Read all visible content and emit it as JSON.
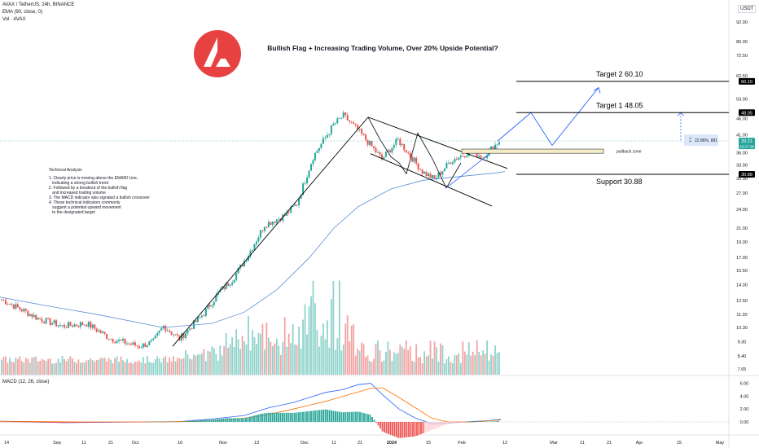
{
  "header": {
    "symbol_line": "AVAX / TetherUS, 24h, BINANCE",
    "ema_label": "EMA (90, close, 0)",
    "vol_label": "Vol · AVAX",
    "macd_label": "MACD (12, 26, close)",
    "currency": "USDT"
  },
  "colors": {
    "bull": "#26a69a",
    "bear": "#ef5350",
    "bull_vol": "#8fd3cb",
    "bear_vol": "#f4a3a1",
    "ema": "#5b8ed6",
    "macd_line": "#2962ff",
    "signal_line": "#ff6d00",
    "logo": "#e84142",
    "projection": "#2962ff"
  },
  "chart_data": {
    "type": "candlestick",
    "title": "Bullish Flag + Increasing Trading Volume, Over 20% Upside Potential?",
    "y_scale": "log",
    "y_ticks": [
      "92.00",
      "80.00",
      "72.50",
      "62.50",
      "53.00",
      "46.00",
      "41.00",
      "36.00",
      "33.00",
      "30.00",
      "27.00",
      "24.00",
      "21.00",
      "19.00",
      "17.00",
      "15.50",
      "14.00",
      "12.50",
      "11.30",
      "10.30",
      "9.30",
      "8.40",
      "7.65"
    ],
    "x_ticks": [
      "14",
      "Sep",
      "11",
      "21",
      "Oct",
      "16",
      "Nov",
      "13",
      "Dec",
      "11",
      "21",
      "2024",
      "15",
      "Feb",
      "12",
      "Mar",
      "11",
      "21",
      "Apr",
      "15",
      "May"
    ],
    "price_tags": [
      {
        "label": "60.10",
        "value": 60.1
      },
      {
        "label": "48.05",
        "value": 48.05
      },
      {
        "label": "39.21",
        "value": 39.21,
        "sub": "20:27:38"
      },
      {
        "label": "30.88",
        "value": 30.88
      }
    ],
    "levels": [
      {
        "label": "Target 2  60.10",
        "value": 60.1
      },
      {
        "label": "Target 1  48.05",
        "value": 48.05
      },
      {
        "label": "Support 30.88",
        "value": 30.88
      }
    ],
    "annotations": {
      "pullback": "pullback zone",
      "measure": "22.86%, 891"
    },
    "macd_ticks": [
      "6.00",
      "4.00",
      "2.00",
      "0.00"
    ]
  },
  "analysis": {
    "title": "Technical Analysis",
    "items": [
      "1. Clearly price is moving above the EMA90 Line,\n   indicating a strong bullish trend",
      "2. Followed by a breakout of the bullish flag\n   and increased trading volume",
      "3. The MACD indicator also signaled a bullish crossover",
      "4. These technical indicators commonly\n   suggest a potential upward movement\n   to the designated target"
    ]
  }
}
